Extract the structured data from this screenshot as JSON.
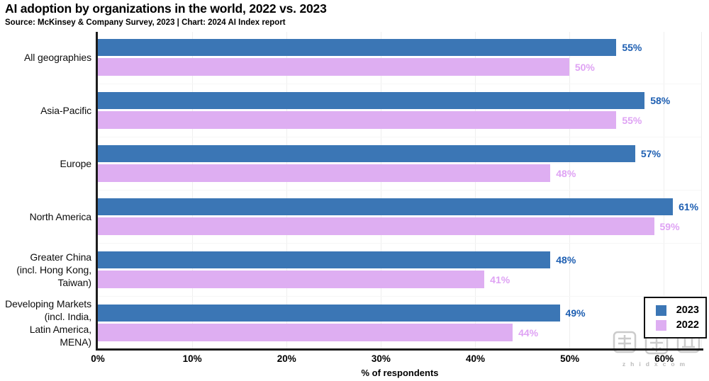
{
  "header": {
    "title": "AI adoption by organizations in the world, 2022 vs. 2023",
    "subtitle": "Source: McKinsey & Company Survey, 2023 | Chart: 2024 AI Index report"
  },
  "chart_data": {
    "type": "bar",
    "orientation": "horizontal",
    "title": "AI adoption by organizations in the world, 2022 vs. 2023",
    "xlabel": "% of respondents",
    "ylabel": "",
    "xlim": [
      0,
      64
    ],
    "grid": "light vertical gridlines at each 10%, faint horizontal lines between category groups",
    "legend_position": "bottom-right, boxed with black border",
    "categories": [
      "All geographies",
      "Asia-Pacific",
      "Europe",
      "North America",
      "Greater China (incl. Hong Kong, Taiwan)",
      "Developing Markets (incl. India, Latin America, MENA)"
    ],
    "category_label_lines": [
      [
        "All geographies"
      ],
      [
        "Asia-Pacific"
      ],
      [
        "Europe"
      ],
      [
        "North America"
      ],
      [
        "Greater China",
        "(incl. Hong Kong,",
        "Taiwan)"
      ],
      [
        "Developing Markets",
        "(incl. India,",
        "Latin America,",
        "MENA)"
      ]
    ],
    "series": [
      {
        "name": "2023",
        "color": "#3b76b5",
        "label_color": "#1e5fb2",
        "values": [
          55,
          58,
          57,
          61,
          48,
          49
        ]
      },
      {
        "name": "2022",
        "color": "#deaef2",
        "label_color": "#dfa3f4",
        "values": [
          50,
          55,
          48,
          59,
          41,
          44
        ]
      }
    ],
    "value_suffix": "%",
    "x_ticks": [
      {
        "value": 0,
        "label": "0%"
      },
      {
        "value": 10,
        "label": "10%"
      },
      {
        "value": 20,
        "label": "20%"
      },
      {
        "value": 30,
        "label": "30%"
      },
      {
        "value": 40,
        "label": "40%"
      },
      {
        "value": 50,
        "label": "50%"
      },
      {
        "value": 60,
        "label": "60%"
      }
    ]
  },
  "axis": {
    "x_title": "% of respondents"
  },
  "watermark": {
    "text": "智东西",
    "subtext": "zhidxcom"
  },
  "colors": {
    "bar_2023": "#3b76b5",
    "bar_2022": "#deaef2",
    "label_2023": "#1e5fb2",
    "label_2022": "#dfa3f4",
    "axis_line": "#1c1c1c",
    "gridline": "#efefef",
    "background": "#ffffff"
  }
}
